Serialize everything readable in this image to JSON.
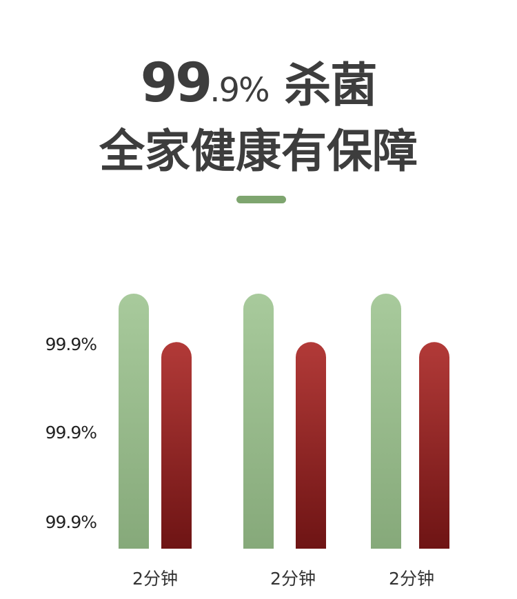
{
  "headline": {
    "percent_main": "99",
    "percent_rest": ".9%",
    "title_suffix": "杀菌",
    "subtitle": "全家健康有保障"
  },
  "colors": {
    "accent_green": "#7ea56f",
    "bar_green_top": "#a8ca9c",
    "bar_green_bottom": "#86a97a",
    "bar_red_top": "#b23a38",
    "bar_red_bottom": "#6e1414",
    "text": "#3d3d3d"
  },
  "chart_data": {
    "type": "bar",
    "categories": [
      "2分钟",
      "2分钟",
      "2分钟"
    ],
    "y_tick_labels": [
      "99.9%",
      "99.9%",
      "99.9%"
    ],
    "series": [
      {
        "values": [
          100,
          100,
          100
        ],
        "color": "#a8ca9c"
      },
      {
        "values": [
          81,
          81,
          81
        ],
        "color": "#a52e2e"
      }
    ],
    "ylim": [
      0,
      100
    ],
    "grid": false,
    "legend": "none"
  }
}
